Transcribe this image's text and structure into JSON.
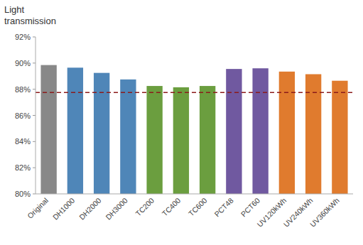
{
  "chart_data": {
    "type": "bar",
    "ylabel": "Light\ntransmission",
    "categories": [
      "Original",
      "DH1000",
      "DH2000",
      "DH3000",
      "TC200",
      "TC400",
      "TC600",
      "PCT48",
      "PCT60",
      "UV120kWh",
      "UV240kWh",
      "UV360kWh"
    ],
    "values": [
      89.85,
      89.65,
      89.25,
      88.75,
      88.25,
      88.15,
      88.25,
      89.55,
      89.6,
      89.35,
      89.15,
      88.65
    ],
    "colors": [
      "#888888",
      "#4f86b8",
      "#4f86b8",
      "#4f86b8",
      "#6b9e3f",
      "#6b9e3f",
      "#6b9e3f",
      "#7059a0",
      "#7059a0",
      "#e07b2e",
      "#e07b2e",
      "#e07b2e"
    ],
    "ylim": [
      80,
      92
    ],
    "yticks": [
      {
        "value": 80,
        "label": "80%"
      },
      {
        "value": 82,
        "label": "82%"
      },
      {
        "value": 84,
        "label": "84%"
      },
      {
        "value": 86,
        "label": "86%"
      },
      {
        "value": 88,
        "label": "88%"
      },
      {
        "value": 90,
        "label": "90%"
      },
      {
        "value": 92,
        "label": "92%"
      }
    ],
    "reference_lines": [
      {
        "value": 87.75,
        "color": "#8b1a1a",
        "line_style": "dashed"
      }
    ],
    "grid": false
  }
}
